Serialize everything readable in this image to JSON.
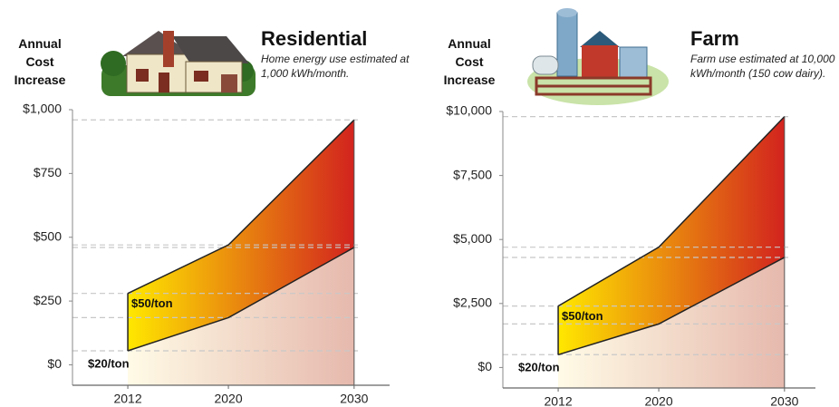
{
  "chart_data": [
    {
      "type": "area",
      "title": "Residential",
      "subtitle": "Home energy use estimated at 1,000 kWh/month.",
      "ylabel": "Annual Cost Increase",
      "x": [
        2012,
        2020,
        2030
      ],
      "xlim": [
        2007.6,
        2030.3
      ],
      "xticks": [
        2012,
        2020,
        2030
      ],
      "ylim": [
        -80,
        1000
      ],
      "yticks": [
        {
          "value": 0,
          "label": "$0"
        },
        {
          "value": 250,
          "label": "$250"
        },
        {
          "value": 500,
          "label": "$500"
        },
        {
          "value": 750,
          "label": "$750"
        },
        {
          "value": 1000,
          "label": "$1,000"
        }
      ],
      "series": [
        {
          "name": "$20/ton",
          "color": "#e6b9ad",
          "values": [
            55,
            185,
            460
          ]
        },
        {
          "name": "$50/ton",
          "color": "#d2231e",
          "values": [
            280,
            470,
            960
          ]
        }
      ]
    },
    {
      "type": "area",
      "title": "Farm",
      "subtitle": "Farm use estimated at 10,000 kWh/month (150 cow dairy).",
      "ylabel": "Annual Cost Increase",
      "x": [
        2012,
        2020,
        2030
      ],
      "xlim": [
        2007.6,
        2030.3
      ],
      "xticks": [
        2012,
        2020,
        2030
      ],
      "ylim": [
        -800,
        10000
      ],
      "yticks": [
        {
          "value": 0,
          "label": "$0"
        },
        {
          "value": 2500,
          "label": "$2,500"
        },
        {
          "value": 5000,
          "label": "$5,000"
        },
        {
          "value": 7500,
          "label": "$7,500"
        },
        {
          "value": 10000,
          "label": "$10,000"
        }
      ],
      "series": [
        {
          "name": "$20/ton",
          "color": "#e6b9ad",
          "values": [
            500,
            1700,
            4300
          ]
        },
        {
          "name": "$50/ton",
          "color": "#d2231e",
          "values": [
            2400,
            4700,
            9800
          ]
        }
      ]
    }
  ]
}
